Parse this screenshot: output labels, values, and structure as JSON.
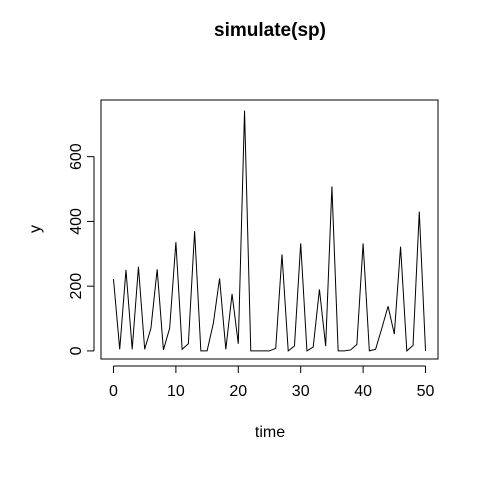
{
  "chart_data": {
    "type": "line",
    "title": "simulate(sp)",
    "xlabel": "time",
    "ylabel": "y",
    "xlim": [
      -2,
      52
    ],
    "ylim": [
      -25,
      775
    ],
    "x_ticks": [
      0,
      10,
      20,
      30,
      40,
      50
    ],
    "y_ticks": [
      0,
      200,
      400,
      600
    ],
    "grid": false,
    "legend": "none",
    "line_color": "#000000",
    "series": [
      {
        "x": [
          0,
          1,
          2,
          3,
          4,
          5,
          6,
          7,
          8,
          9,
          10,
          11,
          12,
          13,
          14,
          15,
          16,
          17,
          18,
          19,
          20,
          21,
          22,
          23,
          24,
          25,
          26,
          27,
          28,
          29,
          30,
          31,
          32,
          33,
          34,
          35,
          36,
          37,
          38,
          39,
          40,
          41,
          42,
          43,
          44,
          45,
          46,
          47,
          48,
          49,
          50
        ],
        "values": [
          222,
          5,
          250,
          5,
          260,
          5,
          70,
          252,
          3,
          70,
          336,
          5,
          22,
          370,
          0,
          0,
          85,
          224,
          5,
          176,
          22,
          742,
          0,
          0,
          0,
          0,
          8,
          298,
          0,
          15,
          332,
          0,
          12,
          190,
          15,
          508,
          0,
          0,
          3,
          20,
          332,
          0,
          5,
          70,
          138,
          52,
          322,
          0,
          17,
          430,
          0
        ]
      }
    ]
  }
}
